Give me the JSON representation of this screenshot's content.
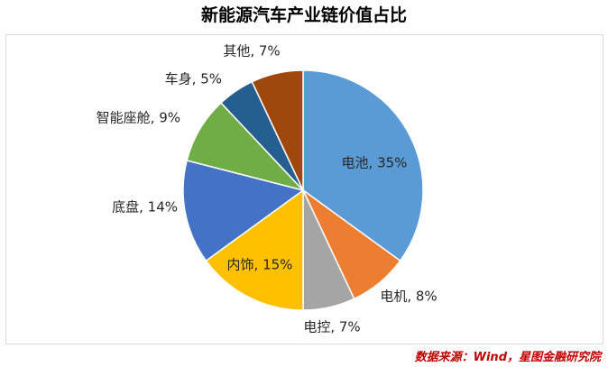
{
  "chart_data": {
    "type": "pie",
    "title": "新能源汽车产业链价值占比",
    "categories": [
      "电池",
      "电机",
      "电控",
      "内饰",
      "底盘",
      "智能座舱",
      "车身",
      "其他"
    ],
    "values": [
      35,
      8,
      7,
      15,
      14,
      9,
      5,
      7
    ],
    "labels": [
      "电池, 35%",
      "电机, 8%",
      "电控, 7%",
      "内饰, 15%",
      "底盘, 14%",
      "智能座舱, 9%",
      "车身, 5%",
      "其他, 7%"
    ],
    "colors": [
      "#5b9bd5",
      "#ed7d31",
      "#a5a5a5",
      "#ffc000",
      "#4472c4",
      "#70ad47",
      "#255e91",
      "#9e480e"
    ],
    "legend": "none"
  },
  "source": "数据来源：Wind，星图金融研究院"
}
